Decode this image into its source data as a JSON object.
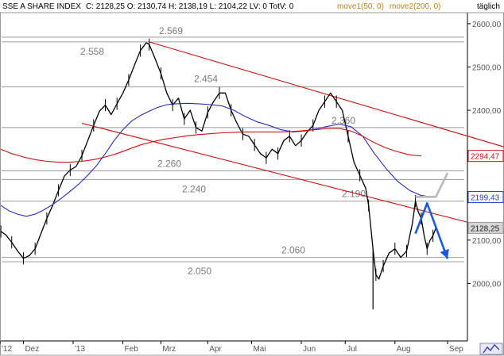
{
  "header": {
    "title": "SSE A SHARE INDEX",
    "ohlc": "C: 2128,25  O: 2130,74  H: 2138,19  L: 2104,22  LV: 0  TotV: 0",
    "ma1": "move1(50, 0)",
    "ma2": "move2(200, 0)",
    "period": "täglich"
  },
  "colors": {
    "price": "#000000",
    "ma50": "#2a2ab8",
    "ma200": "#cc1010",
    "channel": "#cc1010",
    "level": "#7a7a7a",
    "projection": "#1a5cd8",
    "alt_projection": "#b8b8b8",
    "badge_red": "#cc1010",
    "badge_blue": "#1a3fcf",
    "badge_gray": "#d6d6d6"
  },
  "chart_data": {
    "type": "line",
    "x_labels": [
      "'12",
      "Dez",
      "'13",
      "Feb",
      "Mrz",
      "Apr",
      "Mai",
      "Jun",
      "Jul",
      "Aug",
      "Sep"
    ],
    "y_ticks": [
      "2600,00",
      "2500,00",
      "2400,00",
      "2300,00",
      "2100,00",
      "2000,00"
    ],
    "ylim": [
      1900,
      2620
    ],
    "levels": [
      {
        "value": 2569,
        "label": "2.569"
      },
      {
        "value": 2558,
        "label": "2.558"
      },
      {
        "value": 2454,
        "label": "2.454"
      },
      {
        "value": 2360,
        "label": "2.360"
      },
      {
        "value": 2260,
        "label": "2.260"
      },
      {
        "value": 2240,
        "label": "2.240"
      },
      {
        "value": 2190,
        "label": "2.190"
      },
      {
        "value": 2060,
        "label": "2.060"
      },
      {
        "value": 2050,
        "label": "2.050"
      }
    ],
    "price_badges": [
      {
        "value": 2294.47,
        "label": "2294,47",
        "style": "red"
      },
      {
        "value": 2199.43,
        "label": "2199,43",
        "style": "blue"
      },
      {
        "value": 2128.25,
        "label": "2128,25",
        "style": "gray"
      }
    ],
    "series": [
      {
        "name": "SSE A SHARE INDEX",
        "kind": "price",
        "values": [
          [
            0.3,
            2120
          ],
          [
            2,
            2112
          ],
          [
            4,
            2095
          ],
          [
            6,
            2075
          ],
          [
            8,
            2058
          ],
          [
            10,
            2064
          ],
          [
            12,
            2080
          ],
          [
            14,
            2115
          ],
          [
            16,
            2150
          ],
          [
            18,
            2180
          ],
          [
            20,
            2215
          ],
          [
            22,
            2248
          ],
          [
            24,
            2262
          ],
          [
            26,
            2270
          ],
          [
            28,
            2295
          ],
          [
            30,
            2330
          ],
          [
            32,
            2365
          ],
          [
            34,
            2398
          ],
          [
            36,
            2412
          ],
          [
            38,
            2390
          ],
          [
            40,
            2415
          ],
          [
            42,
            2440
          ],
          [
            44,
            2470
          ],
          [
            46,
            2505
          ],
          [
            48,
            2538
          ],
          [
            50,
            2556
          ],
          [
            51,
            2552
          ],
          [
            53,
            2520
          ],
          [
            55,
            2485
          ],
          [
            57,
            2440
          ],
          [
            59,
            2412
          ],
          [
            61,
            2428
          ],
          [
            63,
            2380
          ],
          [
            65,
            2400
          ],
          [
            67,
            2360
          ],
          [
            69,
            2352
          ],
          [
            71,
            2395
          ],
          [
            73,
            2420
          ],
          [
            75,
            2440
          ],
          [
            77,
            2440
          ],
          [
            79,
            2400
          ],
          [
            81,
            2370
          ],
          [
            83,
            2345
          ],
          [
            85,
            2340
          ],
          [
            87,
            2320
          ],
          [
            89,
            2300
          ],
          [
            91,
            2290
          ],
          [
            93,
            2310
          ],
          [
            95,
            2300
          ],
          [
            97,
            2330
          ],
          [
            99,
            2340
          ],
          [
            101,
            2318
          ],
          [
            103,
            2330
          ],
          [
            105,
            2350
          ],
          [
            107,
            2365
          ],
          [
            109,
            2400
          ],
          [
            111,
            2420
          ],
          [
            113,
            2440
          ],
          [
            115,
            2420
          ],
          [
            117,
            2400
          ],
          [
            119,
            2340
          ],
          [
            121,
            2280
          ],
          [
            123,
            2250
          ],
          [
            125,
            2220
          ],
          [
            126,
            2180
          ],
          [
            127.5,
            2080
          ],
          [
            128.5,
            2020
          ],
          [
            129.5,
            2010
          ],
          [
            131,
            2040
          ],
          [
            133,
            2070
          ],
          [
            135,
            2080
          ],
          [
            137,
            2060
          ],
          [
            139,
            2075
          ],
          [
            141,
            2140
          ],
          [
            142,
            2190
          ],
          [
            143,
            2165
          ],
          [
            144,
            2150
          ],
          [
            145,
            2110
          ],
          [
            146,
            2080
          ],
          [
            147,
            2100
          ],
          [
            148,
            2110
          ],
          [
            149,
            2128
          ]
        ]
      },
      {
        "name": "move1(50, 0)",
        "kind": "ma",
        "values": [
          [
            0.3,
            2180
          ],
          [
            3,
            2168
          ],
          [
            6,
            2160
          ],
          [
            9,
            2155
          ],
          [
            12,
            2160
          ],
          [
            15,
            2170
          ],
          [
            18,
            2182
          ],
          [
            21,
            2197
          ],
          [
            24,
            2213
          ],
          [
            27,
            2230
          ],
          [
            30,
            2250
          ],
          [
            33,
            2272
          ],
          [
            36,
            2300
          ],
          [
            39,
            2330
          ],
          [
            42,
            2355
          ],
          [
            45,
            2375
          ],
          [
            48,
            2388
          ],
          [
            51,
            2398
          ],
          [
            54,
            2407
          ],
          [
            57,
            2413
          ],
          [
            60,
            2415
          ],
          [
            64,
            2416
          ],
          [
            68,
            2415
          ],
          [
            72,
            2413
          ],
          [
            76,
            2410
          ],
          [
            80,
            2400
          ],
          [
            84,
            2385
          ],
          [
            88,
            2373
          ],
          [
            92,
            2365
          ],
          [
            96,
            2355
          ],
          [
            100,
            2350
          ],
          [
            104,
            2352
          ],
          [
            108,
            2357
          ],
          [
            112,
            2363
          ],
          [
            116,
            2368
          ],
          [
            120,
            2362
          ],
          [
            124,
            2340
          ],
          [
            128,
            2300
          ],
          [
            132,
            2265
          ],
          [
            136,
            2235
          ],
          [
            140,
            2215
          ],
          [
            144,
            2203
          ],
          [
            148,
            2199.43
          ]
        ]
      },
      {
        "name": "move2(200, 0)",
        "kind": "ma",
        "values": [
          [
            0.3,
            2310
          ],
          [
            4,
            2300
          ],
          [
            8,
            2292
          ],
          [
            12,
            2286
          ],
          [
            16,
            2282
          ],
          [
            20,
            2280
          ],
          [
            24,
            2280
          ],
          [
            28,
            2282
          ],
          [
            32,
            2286
          ],
          [
            36,
            2292
          ],
          [
            40,
            2300
          ],
          [
            44,
            2310
          ],
          [
            48,
            2320
          ],
          [
            52,
            2327
          ],
          [
            56,
            2333
          ],
          [
            60,
            2337
          ],
          [
            64,
            2341
          ],
          [
            68,
            2344
          ],
          [
            72,
            2346
          ],
          [
            76,
            2348
          ],
          [
            80,
            2349
          ],
          [
            84,
            2350
          ],
          [
            88,
            2350
          ],
          [
            92,
            2350
          ],
          [
            96,
            2350
          ],
          [
            100,
            2351
          ],
          [
            104,
            2353
          ],
          [
            108,
            2355
          ],
          [
            112,
            2358
          ],
          [
            116,
            2358
          ],
          [
            120,
            2352
          ],
          [
            124,
            2340
          ],
          [
            128,
            2325
          ],
          [
            132,
            2313
          ],
          [
            136,
            2304
          ],
          [
            140,
            2297
          ],
          [
            144,
            2294.47
          ]
        ]
      }
    ],
    "channel_lines": [
      {
        "name": "upper-trendline",
        "from": [
          51,
          2558
        ],
        "to": [
          175,
          2310
        ]
      },
      {
        "name": "lower-trendline",
        "from": [
          28,
          2370
        ],
        "to": [
          175,
          2115
        ]
      }
    ],
    "projections": [
      {
        "name": "projection-primary",
        "points": [
          [
            142,
            2115
          ],
          [
            146,
            2185
          ],
          [
            153,
            2057
          ]
        ]
      },
      {
        "name": "projection-alt",
        "points": [
          [
            142,
            2200
          ],
          [
            149,
            2200
          ],
          [
            153,
            2255
          ]
        ]
      }
    ]
  }
}
